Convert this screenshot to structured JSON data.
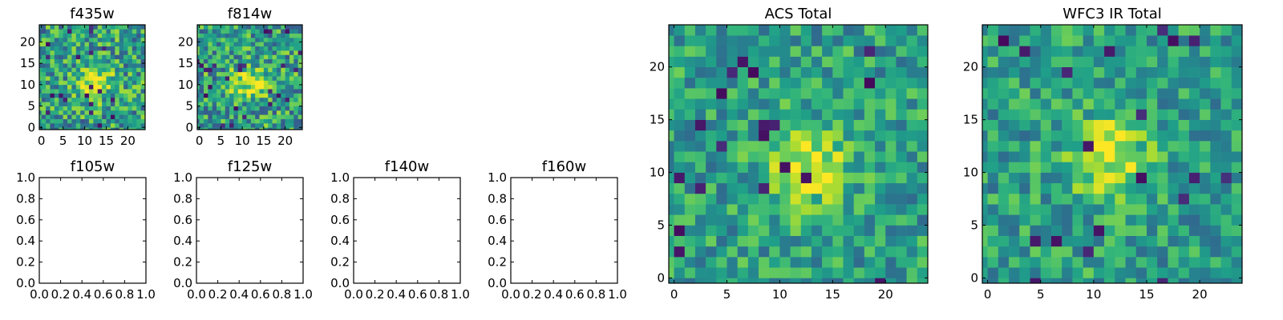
{
  "colormap": {
    "name": "viridis",
    "stops": [
      "#440154",
      "#482878",
      "#3e4989",
      "#31688e",
      "#26828e",
      "#1f9e89",
      "#35b779",
      "#6ece58",
      "#b5de2b",
      "#fde725"
    ]
  },
  "chart_data": [
    {
      "type": "heatmap",
      "title": "f435w",
      "size": 25,
      "xticks": [
        "0",
        "5",
        "10",
        "15",
        "20"
      ],
      "yticks": [
        "0",
        "5",
        "10",
        "15",
        "20"
      ],
      "peak": [
        13,
        11
      ],
      "noise": 0.3,
      "seed": 11
    },
    {
      "type": "heatmap",
      "title": "f814w",
      "size": 25,
      "xticks": [
        "0",
        "5",
        "10",
        "15",
        "20"
      ],
      "yticks": [
        "0",
        "5",
        "10",
        "15",
        "20"
      ],
      "peak": [
        12,
        11
      ],
      "noise": 0.3,
      "seed": 23
    },
    {
      "type": "empty",
      "title": "f105w",
      "xticks": [
        "0.0",
        "0.2",
        "0.4",
        "0.6",
        "0.8",
        "1.0"
      ],
      "yticks": [
        "0.0",
        "0.2",
        "0.4",
        "0.6",
        "0.8",
        "1.0"
      ]
    },
    {
      "type": "empty",
      "title": "f125w",
      "xticks": [
        "0.0",
        "0.2",
        "0.4",
        "0.6",
        "0.8",
        "1.0"
      ],
      "yticks": [
        "0.0",
        "0.2",
        "0.4",
        "0.6",
        "0.8",
        "1.0"
      ]
    },
    {
      "type": "empty",
      "title": "f140w",
      "xticks": [
        "0.0",
        "0.2",
        "0.4",
        "0.6",
        "0.8",
        "1.0"
      ],
      "yticks": [
        "0.0",
        "0.2",
        "0.4",
        "0.6",
        "0.8",
        "1.0"
      ]
    },
    {
      "type": "empty",
      "title": "f160w",
      "xticks": [
        "0.0",
        "0.2",
        "0.4",
        "0.6",
        "0.8",
        "1.0"
      ],
      "yticks": [
        "0.0",
        "0.2",
        "0.4",
        "0.6",
        "0.8",
        "1.0"
      ]
    },
    {
      "type": "heatmap",
      "title": "ACS Total",
      "size": 25,
      "xticks": [
        "0",
        "5",
        "10",
        "15",
        "20"
      ],
      "yticks": [
        "0",
        "5",
        "10",
        "15",
        "20"
      ],
      "peak": [
        13,
        11
      ],
      "noise": 0.22,
      "seed": 37
    },
    {
      "type": "heatmap",
      "title": "WFC3 IR Total",
      "size": 25,
      "xticks": [
        "0",
        "5",
        "10",
        "15",
        "20"
      ],
      "yticks": [
        "0",
        "5",
        "10",
        "15",
        "20"
      ],
      "peak": [
        12,
        12
      ],
      "noise": 0.22,
      "seed": 53
    }
  ]
}
